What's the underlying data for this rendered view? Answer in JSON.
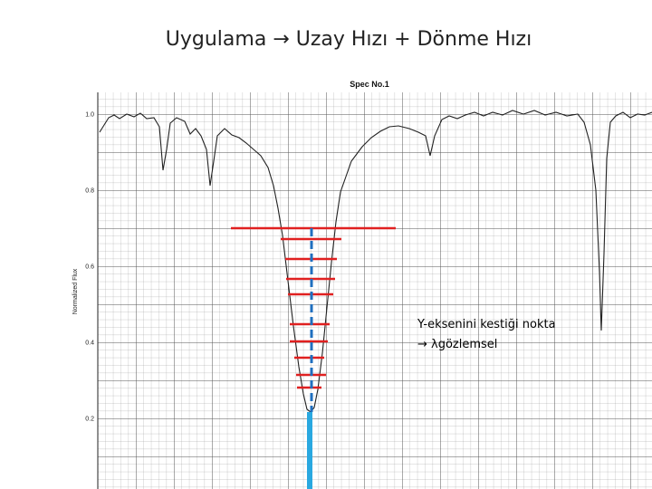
{
  "slide": {
    "title": "Uygulama → Uzay Hızı + Dönme Hızı",
    "plot": {
      "title": "Spec No.1",
      "y_label": "Normalized Flux",
      "y_tick_labels": [
        "1.0",
        "0.8",
        "0.6",
        "0.4",
        "0.2"
      ]
    },
    "annotation": [
      "Y-eksenini kestiği nokta",
      "→ λgözlemsel"
    ]
  }
}
